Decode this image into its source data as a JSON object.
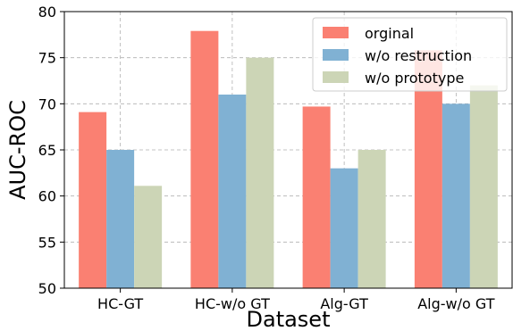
{
  "chart_data": {
    "type": "bar",
    "title": "",
    "xlabel": "Dataset",
    "ylabel": "AUC-ROC",
    "ylim": [
      50,
      80
    ],
    "yticks": [
      50,
      55,
      60,
      65,
      70,
      75,
      80
    ],
    "grid": true,
    "legend_position": "top-right",
    "categories": [
      "HC-GT",
      "HC-w/o GT",
      "Alg-GT",
      "Alg-w/o GT"
    ],
    "series": [
      {
        "name": "orginal",
        "color": "#fa8072",
        "values": [
          69.1,
          77.9,
          69.7,
          75.8
        ]
      },
      {
        "name": "w/o restruction",
        "color": "#80b1d3",
        "values": [
          65.0,
          71.0,
          63.0,
          70.0
        ]
      },
      {
        "name": "w/o prototype",
        "color": "#ccd5b6",
        "values": [
          61.1,
          75.0,
          65.0,
          72.0
        ]
      }
    ]
  }
}
